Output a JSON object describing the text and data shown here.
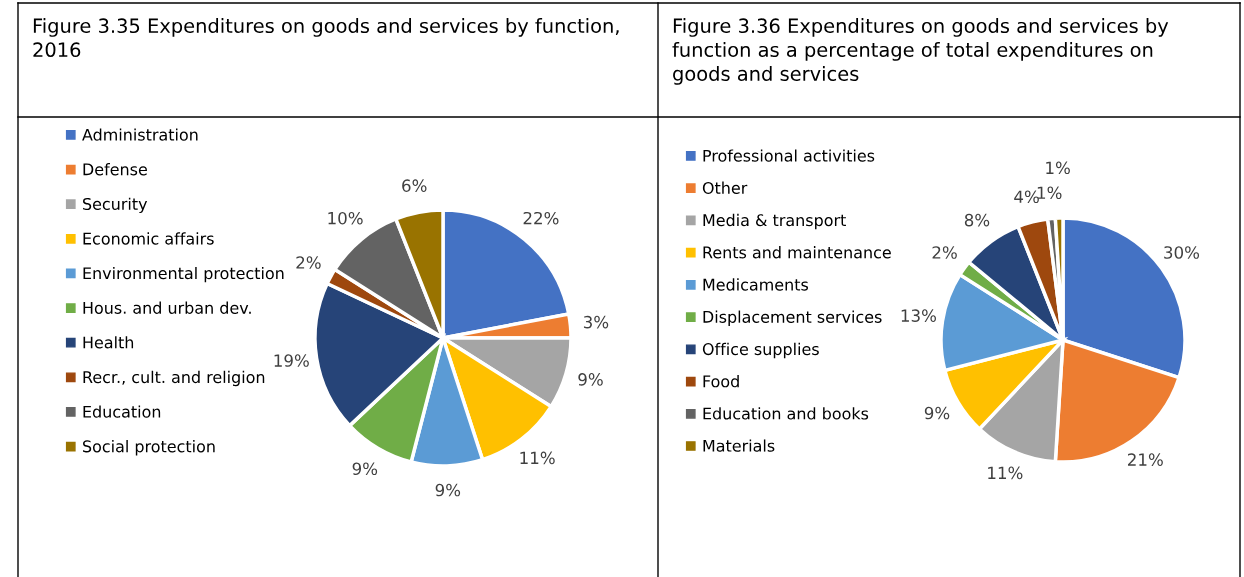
{
  "chart_data": [
    {
      "type": "pie",
      "title": "Figure 3.35 Expenditures on goods and services by function, 2016",
      "categories": [
        "Administration",
        "Defense",
        "Security",
        "Economic affairs",
        "Environmental protection",
        "Hous. and urban dev.",
        "Health",
        "Recr., cult. and religion",
        "Education",
        "Social protection"
      ],
      "values": [
        22,
        3,
        9,
        11,
        9,
        9,
        19,
        2,
        10,
        6
      ],
      "value_labels": [
        "22%",
        "3%",
        "9%",
        "11%",
        "9%",
        "9%",
        "19%",
        "2%",
        "10%",
        "6%"
      ],
      "colors": [
        "#4472c4",
        "#ed7d31",
        "#a5a5a5",
        "#ffc000",
        "#5b9bd5",
        "#70ad47",
        "#264478",
        "#9e480e",
        "#636363",
        "#997300"
      ],
      "legend": "left"
    },
    {
      "type": "pie",
      "title": "Figure 3.36 Expenditures on goods and services by function as a percentage of total expenditures on goods and services",
      "categories": [
        "Professional activities",
        "Other",
        "Media & transport",
        "Rents and maintenance",
        "Medicaments",
        "Displacement services",
        "Office supplies",
        "Food",
        "Education and books",
        "Materials"
      ],
      "values": [
        30,
        21,
        11,
        9,
        13,
        2,
        8,
        4,
        1,
        1
      ],
      "value_labels": [
        "30%",
        "21%",
        "11%",
        "9%",
        "13%",
        "2%",
        "8%",
        "4%",
        "1%",
        "1%"
      ],
      "colors": [
        "#4472c4",
        "#ed7d31",
        "#a5a5a5",
        "#ffc000",
        "#5b9bd5",
        "#70ad47",
        "#264478",
        "#9e480e",
        "#636363",
        "#997300"
      ],
      "legend": "left"
    }
  ]
}
